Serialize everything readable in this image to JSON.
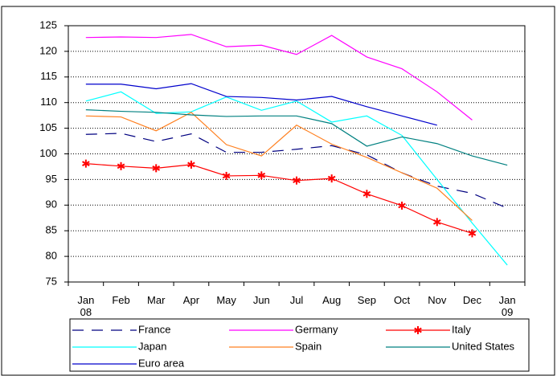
{
  "chart_data": {
    "type": "line",
    "categories": [
      "Jan 08",
      "Feb",
      "Mar",
      "Apr",
      "May",
      "Jun",
      "Jul",
      "Aug",
      "Sep",
      "Oct",
      "Nov",
      "Dec",
      "Jan 09"
    ],
    "series": [
      {
        "name": "France",
        "color": "#000080",
        "dash": true,
        "values": [
          103.8,
          104,
          102.4,
          103.9,
          100.3,
          100.3,
          100.9,
          101.6,
          99.8,
          96.3,
          93.7,
          92.3,
          89.4
        ]
      },
      {
        "name": "Germany",
        "color": "#ff00ff",
        "values": [
          122.7,
          122.8,
          122.7,
          123.3,
          120.9,
          121.2,
          119.4,
          123.1,
          118.9,
          116.6,
          112.1,
          106.6,
          null
        ]
      },
      {
        "name": "Italy",
        "color": "#ff0000",
        "marker": "star",
        "values": [
          98.1,
          97.6,
          97.2,
          97.9,
          95.7,
          95.8,
          94.8,
          95.2,
          92.2,
          89.9,
          86.7,
          84.5,
          null
        ]
      },
      {
        "name": "Japan",
        "color": "#00ffff",
        "values": [
          110.3,
          112.1,
          107.9,
          108.2,
          111.1,
          108.5,
          110.3,
          106.2,
          107.4,
          103.6,
          95.0,
          86.5,
          78.3
        ]
      },
      {
        "name": "Spain",
        "color": "#ff8020",
        "values": [
          107.4,
          107.2,
          104.5,
          108.1,
          101.8,
          99.6,
          105.6,
          101.9,
          99.3,
          96.3,
          93.3,
          87.0,
          null
        ]
      },
      {
        "name": "United States",
        "color": "#008080",
        "values": [
          108.6,
          108.3,
          108.1,
          107.6,
          107.3,
          107.4,
          107.4,
          105.9,
          101.5,
          103.3,
          102.0,
          99.6,
          97.8
        ]
      },
      {
        "name": "Euro area",
        "color": "#0000cc",
        "values": [
          113.6,
          113.6,
          112.7,
          113.7,
          111.2,
          111.0,
          110.5,
          111.2,
          109.2,
          107.4,
          105.6,
          null,
          null
        ]
      }
    ],
    "ylim": [
      75,
      125
    ],
    "yticks": [
      75,
      80,
      85,
      90,
      95,
      100,
      105,
      110,
      115,
      120,
      125
    ],
    "grid": true,
    "legend": "bottom"
  }
}
